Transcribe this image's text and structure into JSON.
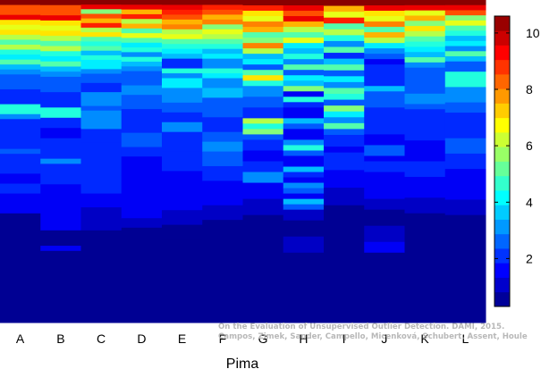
{
  "chart_data": {
    "type": "heatmap",
    "title": "",
    "xlabel": "Pima",
    "ylabel": "",
    "categories": [
      "A",
      "B",
      "C",
      "D",
      "E",
      "F",
      "G",
      "H",
      "I",
      "J",
      "K",
      "L"
    ],
    "colorbar": {
      "min": 0.3,
      "max": 10.6,
      "ticks": [
        2,
        4,
        6,
        8,
        10
      ]
    },
    "grid": false,
    "legend": "colorbar-right",
    "columns": [
      [
        [
          10.5,
          1
        ],
        [
          8.5,
          2
        ],
        [
          9.5,
          1
        ],
        [
          7,
          1
        ],
        [
          6.5,
          1
        ],
        [
          7,
          1
        ],
        [
          6,
          1
        ],
        [
          5,
          1
        ],
        [
          6,
          1
        ],
        [
          4.5,
          1
        ],
        [
          4,
          1
        ],
        [
          5,
          1
        ],
        [
          3.5,
          1
        ],
        [
          3,
          1
        ],
        [
          2.5,
          3
        ],
        [
          2,
          3
        ],
        [
          4.5,
          2
        ],
        [
          3,
          1
        ],
        [
          2,
          6
        ],
        [
          2.5,
          1
        ],
        [
          2,
          4
        ],
        [
          1.5,
          2
        ],
        [
          2,
          2
        ],
        [
          1.5,
          3
        ],
        [
          1.5,
          1
        ],
        [
          0.5,
          22
        ]
      ],
      [
        [
          10.5,
          1
        ],
        [
          8.5,
          2
        ],
        [
          9.5,
          1
        ],
        [
          7,
          1
        ],
        [
          6.5,
          1
        ],
        [
          7,
          1
        ],
        [
          6,
          1
        ],
        [
          5,
          1
        ],
        [
          6,
          1
        ],
        [
          4.5,
          1
        ],
        [
          4,
          1
        ],
        [
          5,
          1
        ],
        [
          3.5,
          1
        ],
        [
          3,
          1
        ],
        [
          2.5,
          3
        ],
        [
          2,
          3
        ],
        [
          4.5,
          2
        ],
        [
          2,
          2
        ],
        [
          1.5,
          2
        ],
        [
          2,
          4
        ],
        [
          3,
          1
        ],
        [
          2,
          4
        ],
        [
          1.5,
          4
        ],
        [
          1.5,
          5
        ],
        [
          0.5,
          3
        ],
        [
          1.5,
          1
        ],
        [
          0.5,
          14
        ]
      ],
      [
        [
          10.5,
          1
        ],
        [
          9.5,
          1
        ],
        [
          5.5,
          1
        ],
        [
          8.5,
          1
        ],
        [
          7.5,
          1
        ],
        [
          9,
          1
        ],
        [
          6,
          1
        ],
        [
          7,
          1
        ],
        [
          5,
          1
        ],
        [
          4.5,
          1
        ],
        [
          5,
          1
        ],
        [
          3.5,
          1
        ],
        [
          4.5,
          1
        ],
        [
          4,
          2
        ],
        [
          3,
          1
        ],
        [
          2.5,
          2
        ],
        [
          2,
          2
        ],
        [
          3,
          3
        ],
        [
          2.5,
          1
        ],
        [
          3,
          4
        ],
        [
          2,
          3
        ],
        [
          2,
          5
        ],
        [
          2,
          6
        ],
        [
          1.5,
          3
        ],
        [
          1,
          5
        ],
        [
          0.5,
          20
        ]
      ],
      [
        [
          10.5,
          1
        ],
        [
          9.5,
          1
        ],
        [
          7.5,
          1
        ],
        [
          9,
          1
        ],
        [
          6,
          1
        ],
        [
          7.5,
          1
        ],
        [
          5,
          1
        ],
        [
          6.5,
          1
        ],
        [
          5,
          1
        ],
        [
          4,
          1
        ],
        [
          4.5,
          1
        ],
        [
          3,
          1
        ],
        [
          4.5,
          1
        ],
        [
          3.5,
          1
        ],
        [
          3,
          1
        ],
        [
          2.5,
          3
        ],
        [
          3,
          2
        ],
        [
          2.5,
          3
        ],
        [
          2,
          5
        ],
        [
          2.5,
          3
        ],
        [
          2,
          2
        ],
        [
          1.5,
          4
        ],
        [
          1.5,
          4
        ],
        [
          1.5,
          5
        ],
        [
          1,
          2
        ],
        [
          0.5,
          20
        ]
      ],
      [
        [
          10.5,
          1
        ],
        [
          9.5,
          1
        ],
        [
          9,
          1
        ],
        [
          8.5,
          1
        ],
        [
          7.5,
          1
        ],
        [
          8,
          1
        ],
        [
          6,
          1
        ],
        [
          6.5,
          1
        ],
        [
          5,
          1
        ],
        [
          4.5,
          1
        ],
        [
          4,
          1
        ],
        [
          3.5,
          1
        ],
        [
          2,
          2
        ],
        [
          4.5,
          1
        ],
        [
          3,
          1
        ],
        [
          4,
          2
        ],
        [
          3,
          3
        ],
        [
          2.5,
          2
        ],
        [
          2,
          2
        ],
        [
          3,
          2
        ],
        [
          2,
          4
        ],
        [
          2,
          4
        ],
        [
          1.5,
          3
        ],
        [
          1.5,
          5
        ],
        [
          1,
          3
        ],
        [
          0.5,
          3
        ],
        [
          0.5,
          17
        ]
      ],
      [
        [
          10.5,
          1
        ],
        [
          9,
          1
        ],
        [
          8.5,
          1
        ],
        [
          7.5,
          1
        ],
        [
          8,
          1
        ],
        [
          5.5,
          1
        ],
        [
          6.5,
          1
        ],
        [
          6,
          1
        ],
        [
          5,
          1
        ],
        [
          4.5,
          1
        ],
        [
          3.5,
          1
        ],
        [
          4,
          1
        ],
        [
          3,
          2
        ],
        [
          4.5,
          1
        ],
        [
          4,
          1
        ],
        [
          3,
          2
        ],
        [
          3.5,
          2
        ],
        [
          2.5,
          4
        ],
        [
          2,
          3
        ],
        [
          2.5,
          2
        ],
        [
          3,
          2
        ],
        [
          2.5,
          3
        ],
        [
          2,
          3
        ],
        [
          1.5,
          5
        ],
        [
          1,
          3
        ],
        [
          0.5,
          21
        ]
      ],
      [
        [
          10.5,
          1
        ],
        [
          9,
          1
        ],
        [
          7,
          1
        ],
        [
          6.5,
          1
        ],
        [
          8,
          1
        ],
        [
          7.5,
          1
        ],
        [
          5,
          1
        ],
        [
          5.5,
          1
        ],
        [
          8,
          1
        ],
        [
          6,
          1
        ],
        [
          3.5,
          1
        ],
        [
          4,
          1
        ],
        [
          2.5,
          1
        ],
        [
          5,
          1
        ],
        [
          7,
          1
        ],
        [
          4.5,
          1
        ],
        [
          3,
          2
        ],
        [
          2.5,
          2
        ],
        [
          2,
          2
        ],
        [
          6,
          1
        ],
        [
          4.5,
          1
        ],
        [
          5.5,
          1
        ],
        [
          2.5,
          1
        ],
        [
          2,
          2
        ],
        [
          1.5,
          2
        ],
        [
          2,
          2
        ],
        [
          3,
          2
        ],
        [
          1.5,
          3
        ],
        [
          1,
          3
        ],
        [
          0.5,
          20
        ]
      ],
      [
        [
          10.5,
          1
        ],
        [
          9.5,
          1
        ],
        [
          8.5,
          1
        ],
        [
          9.5,
          1
        ],
        [
          7.5,
          1
        ],
        [
          6,
          1
        ],
        [
          5,
          1
        ],
        [
          6.5,
          1
        ],
        [
          4,
          1
        ],
        [
          3.5,
          1
        ],
        [
          4.5,
          1
        ],
        [
          3,
          1
        ],
        [
          5,
          1
        ],
        [
          2.5,
          1
        ],
        [
          4,
          1
        ],
        [
          3.5,
          1
        ],
        [
          5.5,
          1
        ],
        [
          1.5,
          1
        ],
        [
          4.5,
          1
        ],
        [
          2,
          1
        ],
        [
          1.5,
          2
        ],
        [
          3.5,
          1
        ],
        [
          2.5,
          1
        ],
        [
          1.5,
          2
        ],
        [
          3,
          1
        ],
        [
          4.5,
          1
        ],
        [
          2.5,
          1
        ],
        [
          1.5,
          2
        ],
        [
          3.5,
          1
        ],
        [
          2,
          1
        ],
        [
          1.5,
          1
        ],
        [
          3,
          1
        ],
        [
          2.5,
          1
        ],
        [
          1.5,
          1
        ],
        [
          3.5,
          1
        ],
        [
          2.5,
          1
        ],
        [
          1,
          2
        ],
        [
          0.5,
          3
        ],
        [
          1,
          3
        ],
        [
          0.5,
          13
        ]
      ],
      [
        [
          10.5,
          1
        ],
        [
          7.5,
          1
        ],
        [
          6.5,
          1
        ],
        [
          9,
          1
        ],
        [
          5,
          1
        ],
        [
          6,
          1
        ],
        [
          4.5,
          1
        ],
        [
          3,
          1
        ],
        [
          5,
          1
        ],
        [
          2,
          1
        ],
        [
          3.5,
          1
        ],
        [
          5,
          1
        ],
        [
          2.5,
          1
        ],
        [
          4,
          1
        ],
        [
          3,
          1
        ],
        [
          5,
          1
        ],
        [
          4.5,
          1
        ],
        [
          2.5,
          1
        ],
        [
          5.5,
          1
        ],
        [
          4,
          1
        ],
        [
          3,
          1
        ],
        [
          5,
          1
        ],
        [
          2.5,
          1
        ],
        [
          2,
          2
        ],
        [
          1.5,
          1
        ],
        [
          2,
          3
        ],
        [
          1.5,
          3
        ],
        [
          1,
          3
        ],
        [
          0.5,
          20
        ]
      ],
      [
        [
          10.5,
          1
        ],
        [
          9.5,
          1
        ],
        [
          7,
          1
        ],
        [
          6.5,
          1
        ],
        [
          8,
          1
        ],
        [
          5,
          1
        ],
        [
          7.5,
          1
        ],
        [
          6,
          1
        ],
        [
          4,
          1
        ],
        [
          3,
          1
        ],
        [
          2.5,
          1
        ],
        [
          1.5,
          1
        ],
        [
          2,
          4
        ],
        [
          3.5,
          1
        ],
        [
          2.5,
          3
        ],
        [
          2,
          5
        ],
        [
          1.5,
          2
        ],
        [
          2.5,
          2
        ],
        [
          1.5,
          1
        ],
        [
          2,
          2
        ],
        [
          1.5,
          5
        ],
        [
          1,
          2
        ],
        [
          0.5,
          3
        ],
        [
          1,
          3
        ],
        [
          1.5,
          2
        ],
        [
          0.5,
          2
        ],
        [
          0.5,
          11
        ]
      ],
      [
        [
          10.5,
          1
        ],
        [
          9.5,
          1
        ],
        [
          6.5,
          1
        ],
        [
          7.5,
          1
        ],
        [
          5.5,
          1
        ],
        [
          7,
          1
        ],
        [
          6,
          1
        ],
        [
          5,
          1
        ],
        [
          4.5,
          1
        ],
        [
          4,
          1
        ],
        [
          3.5,
          1
        ],
        [
          5,
          1
        ],
        [
          3,
          1
        ],
        [
          2.5,
          5
        ],
        [
          3,
          2
        ],
        [
          2.5,
          1
        ],
        [
          2,
          6
        ],
        [
          1.5,
          4
        ],
        [
          2,
          3
        ],
        [
          1.5,
          4
        ],
        [
          1,
          3
        ],
        [
          0.5,
          21
        ]
      ],
      [
        [
          10.5,
          1
        ],
        [
          9.5,
          1
        ],
        [
          8.5,
          1
        ],
        [
          5.5,
          1
        ],
        [
          6.5,
          1
        ],
        [
          5,
          1
        ],
        [
          4.5,
          1
        ],
        [
          3.5,
          1
        ],
        [
          4,
          1
        ],
        [
          3,
          1
        ],
        [
          5,
          1
        ],
        [
          3.5,
          1
        ],
        [
          2.5,
          2
        ],
        [
          4.5,
          3
        ],
        [
          3,
          3
        ],
        [
          2.5,
          2
        ],
        [
          2,
          5
        ],
        [
          2.5,
          3
        ],
        [
          2,
          3
        ],
        [
          1.5,
          2
        ],
        [
          1.5,
          4
        ],
        [
          1,
          3
        ],
        [
          0.5,
          21
        ]
      ]
    ]
  },
  "watermark": {
    "line1": "On the Evaluation of Unsupervised Outlier Detection. DAMI, 2015.",
    "line2": "Campos, Zimek, Sander, Campello, Micenková, Schubert, Assent, Houle"
  }
}
